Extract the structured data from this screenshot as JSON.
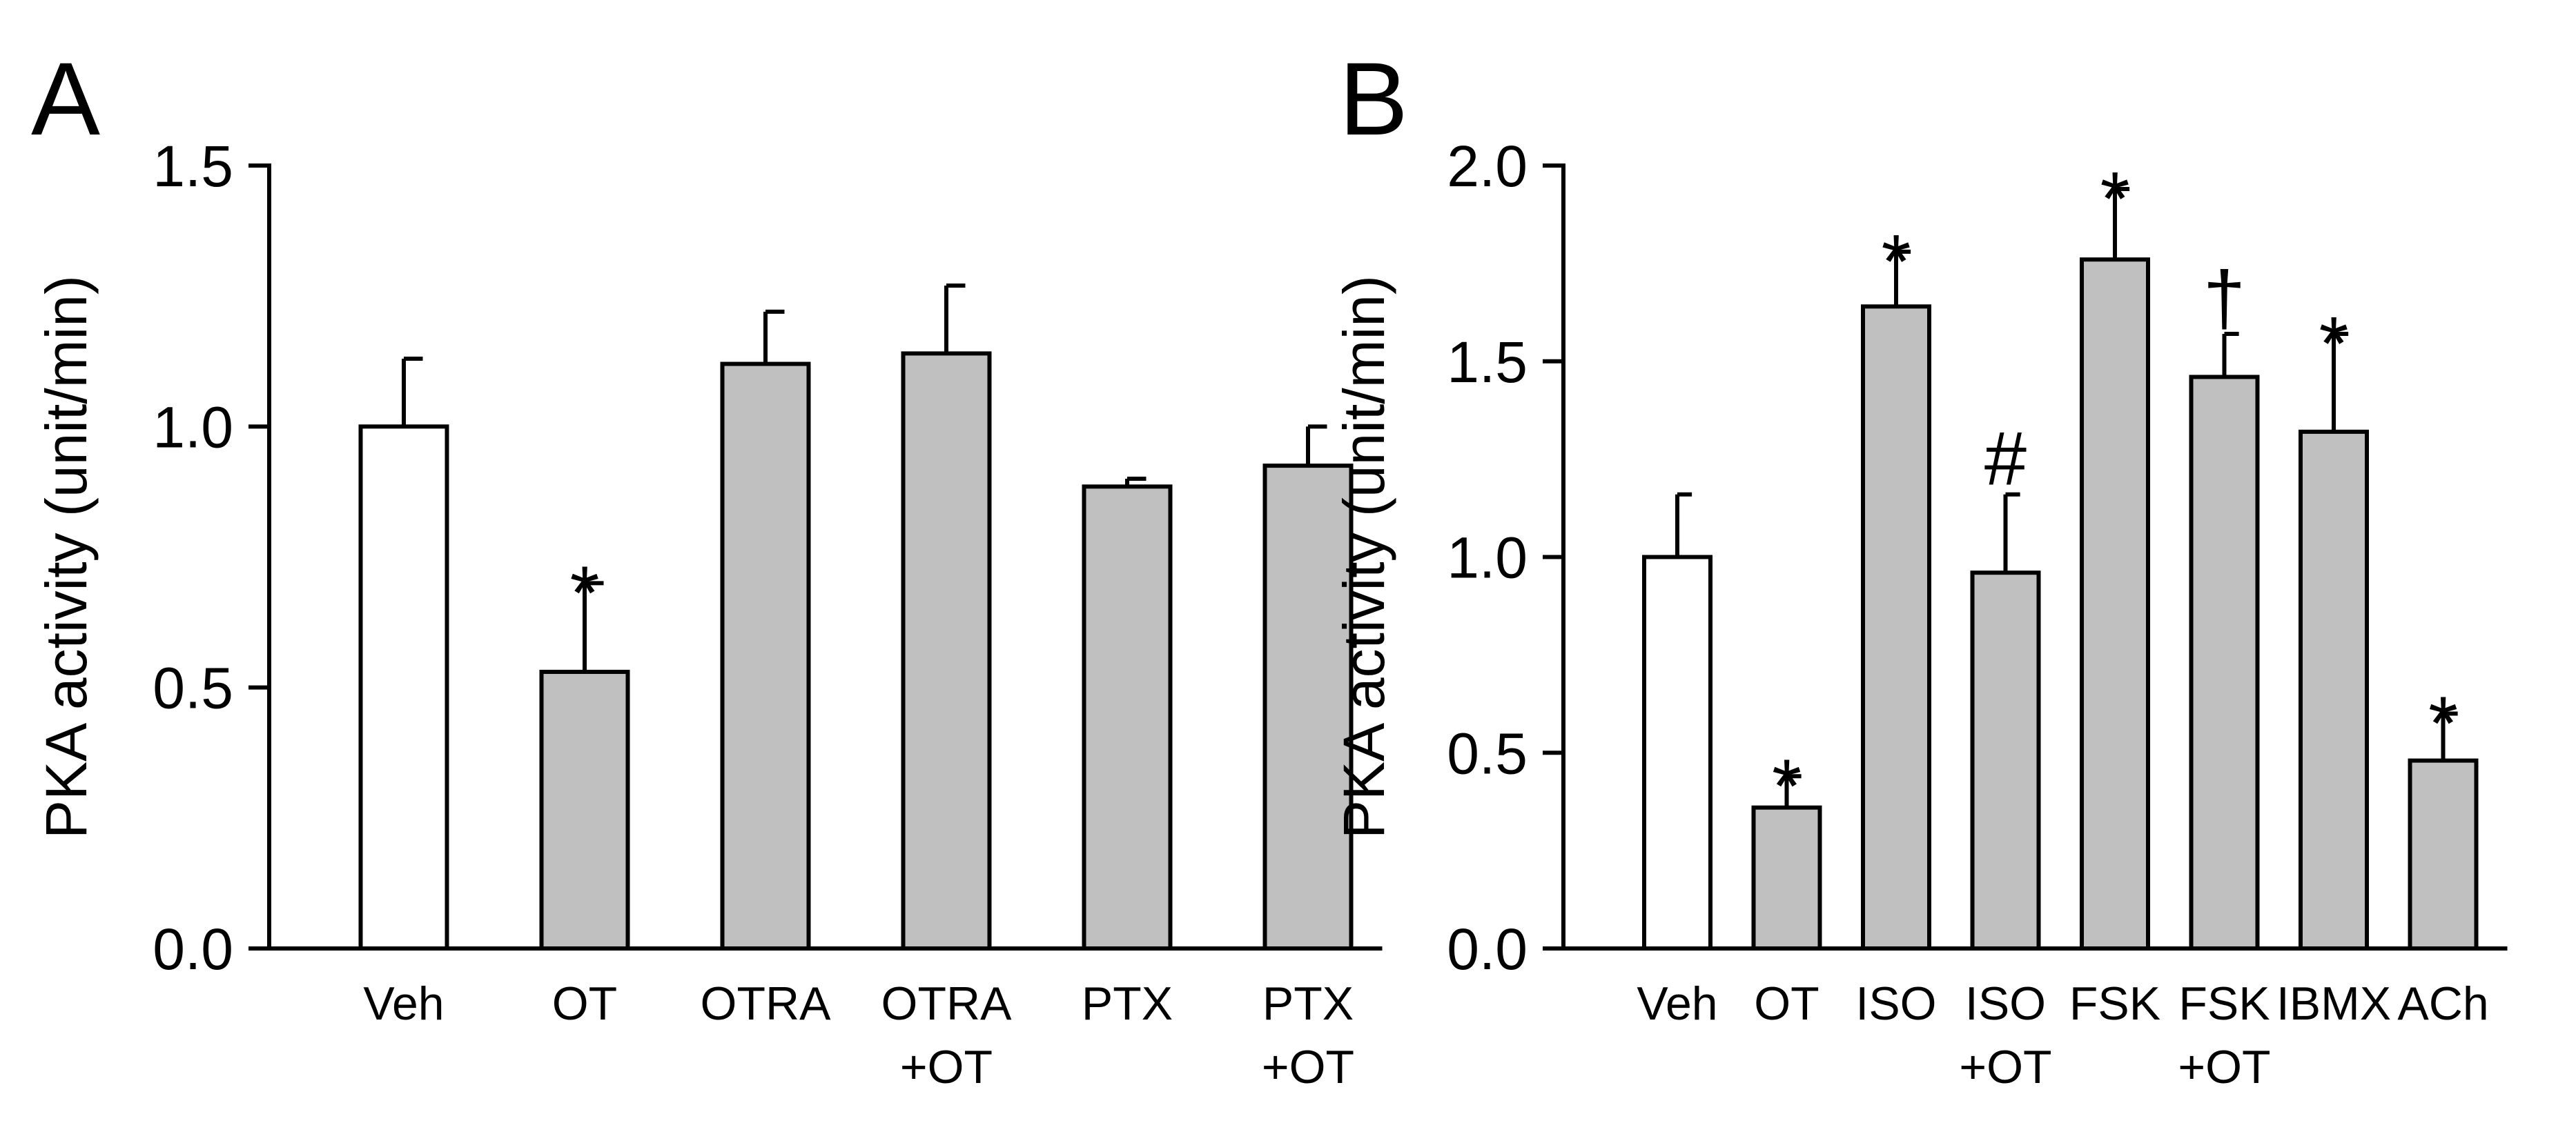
{
  "chart_data": [
    {
      "type": "bar",
      "panel": "A",
      "ylabel": "PKA activity (unit/min)",
      "ylim": [
        0,
        1.5
      ],
      "yticks": [
        "0.0",
        "0.5",
        "1.0",
        "1.5"
      ],
      "ytick_values": [
        0,
        0.5,
        1.0,
        1.5
      ],
      "bars": [
        {
          "label": [
            "Veh"
          ],
          "value": 1.0,
          "error": 0.13,
          "fill": "#ffffff",
          "sig": ""
        },
        {
          "label": [
            "OT"
          ],
          "value": 0.53,
          "error": 0.17,
          "fill": "#c0c0c0",
          "sig": "*"
        },
        {
          "label": [
            "OTRA"
          ],
          "value": 1.12,
          "error": 0.1,
          "fill": "#c0c0c0",
          "sig": ""
        },
        {
          "label": [
            "OTRA",
            "+OT"
          ],
          "value": 1.14,
          "error": 0.13,
          "fill": "#c0c0c0",
          "sig": ""
        },
        {
          "label": [
            "PTX"
          ],
          "value": 0.885,
          "error": 0.015,
          "fill": "#c0c0c0",
          "sig": ""
        },
        {
          "label": [
            "PTX",
            "+OT"
          ],
          "value": 0.925,
          "error": 0.075,
          "fill": "#c0c0c0",
          "sig": ""
        }
      ]
    },
    {
      "type": "bar",
      "panel": "B",
      "ylabel": "PKA activity (unit/min)",
      "ylim": [
        0,
        2.0
      ],
      "yticks": [
        "0.0",
        "0.5",
        "1.0",
        "1.5",
        "2.0"
      ],
      "ytick_values": [
        0,
        0.5,
        1.0,
        1.5,
        2.0
      ],
      "bars": [
        {
          "label": [
            "Veh"
          ],
          "value": 1.0,
          "error": 0.16,
          "fill": "#ffffff",
          "sig": ""
        },
        {
          "label": [
            "OT"
          ],
          "value": 0.36,
          "error": 0.08,
          "fill": "#c0c0c0",
          "sig": "*"
        },
        {
          "label": [
            "ISO"
          ],
          "value": 1.64,
          "error": 0.14,
          "fill": "#c0c0c0",
          "sig": "*"
        },
        {
          "label": [
            "ISO",
            "+OT"
          ],
          "value": 0.96,
          "error": 0.2,
          "fill": "#c0c0c0",
          "sig": "#"
        },
        {
          "label": [
            "FSK"
          ],
          "value": 1.76,
          "error": 0.18,
          "fill": "#c0c0c0",
          "sig": "*"
        },
        {
          "label": [
            "FSK",
            "+OT"
          ],
          "value": 1.46,
          "error": 0.11,
          "fill": "#c0c0c0",
          "sig": "†"
        },
        {
          "label": [
            "IBMX"
          ],
          "value": 1.32,
          "error": 0.25,
          "fill": "#c0c0c0",
          "sig": "*"
        },
        {
          "label": [
            "ACh"
          ],
          "value": 0.48,
          "error": 0.12,
          "fill": "#c0c0c0",
          "sig": "*"
        }
      ]
    }
  ]
}
